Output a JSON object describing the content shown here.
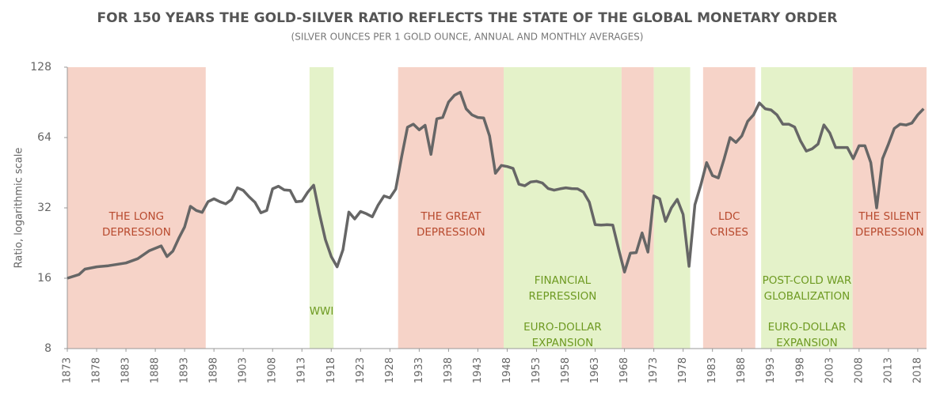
{
  "chart_data": {
    "type": "line",
    "title": "FOR 150 YEARS THE GOLD-SILVER RATIO REFLECTS THE STATE OF THE GLOBAL MONETARY ORDER",
    "subtitle": "(SILVER OUNCES PER 1 GOLD OUNCE, ANNUAL AND MONTHLY AVERAGES)",
    "y_label": "Ratio, logarithmic scale",
    "log_scale": true,
    "ylim": [
      8,
      128
    ],
    "yticks": [
      8,
      16,
      32,
      64,
      128
    ],
    "xlim": [
      1873,
      2019.5
    ],
    "xticks": [
      1873,
      1878,
      1883,
      1888,
      1893,
      1898,
      1903,
      1908,
      1913,
      1918,
      1923,
      1928,
      1933,
      1938,
      1943,
      1948,
      1953,
      1958,
      1963,
      1968,
      1973,
      1978,
      1983,
      1988,
      1993,
      1998,
      2003,
      2008,
      2013,
      2018
    ],
    "x": [
      1873,
      1875,
      1876,
      1878,
      1880,
      1883,
      1885,
      1887,
      1889,
      1890,
      1891,
      1892,
      1893,
      1894,
      1895,
      1896,
      1897,
      1898,
      1899,
      1900,
      1901,
      1902,
      1903,
      1904,
      1905,
      1906,
      1907,
      1908,
      1909,
      1910,
      1911,
      1912,
      1913,
      1914,
      1915,
      1916,
      1917,
      1918,
      1919,
      1920,
      1921,
      1922,
      1923,
      1924,
      1925,
      1926,
      1927,
      1928,
      1929,
      1930,
      1931,
      1932,
      1933,
      1934,
      1935,
      1936,
      1937,
      1938,
      1939,
      1940,
      1941,
      1942,
      1943,
      1944,
      1945,
      1946,
      1947,
      1948,
      1949,
      1950,
      1951,
      1952,
      1953,
      1954,
      1955,
      1956,
      1957,
      1958,
      1959,
      1960,
      1961,
      1962,
      1963,
      1964,
      1965,
      1966,
      1967,
      1968,
      1969,
      1970,
      1971,
      1972,
      1973,
      1974,
      1975,
      1976,
      1977,
      1978,
      1979,
      1980,
      1981,
      1982,
      1983,
      1984,
      1985,
      1986,
      1987,
      1988,
      1989,
      1990,
      1991,
      1992,
      1993,
      1994,
      1995,
      1996,
      1997,
      1998,
      1999,
      2000,
      2001,
      2002,
      2003,
      2004,
      2005,
      2006,
      2007,
      2008,
      2009,
      2010,
      2011,
      2012,
      2013,
      2014,
      2015,
      2016,
      2017,
      2018,
      2019
    ],
    "series": [
      {
        "name": "Gold-silver ratio",
        "color": "#666666",
        "values": [
          16,
          16.6,
          17.5,
          17.9,
          18.1,
          18.6,
          19.4,
          21,
          22,
          19.8,
          20.9,
          23.7,
          26.5,
          32.5,
          31.2,
          30.6,
          34,
          35,
          34,
          33.3,
          34.7,
          39,
          38,
          35.7,
          33.8,
          30.5,
          31.2,
          38.6,
          39.6,
          38.2,
          38,
          34,
          34.2,
          37.4,
          40,
          30.1,
          23.4,
          19.8,
          17.9,
          21.2,
          30.7,
          28.7,
          30.9,
          30.2,
          29.3,
          32.9,
          36,
          35.3,
          38.5,
          53,
          70.9,
          73,
          69,
          72.2,
          54.2,
          77,
          78,
          90.8,
          97,
          100,
          85,
          80,
          78,
          77.6,
          65,
          45,
          48.6,
          48.1,
          47.2,
          40.4,
          39.8,
          41.3,
          41.6,
          40.9,
          38.7,
          38.1,
          38.6,
          39,
          38.7,
          38.6,
          37.4,
          33.9,
          27.1,
          27,
          27.1,
          27,
          21.3,
          17,
          20.5,
          20.6,
          25,
          20.7,
          36,
          35,
          28,
          32,
          34.8,
          30,
          18,
          33,
          40,
          50,
          44,
          43,
          52,
          64,
          61,
          65,
          75,
          80,
          90,
          85,
          84,
          80,
          73,
          73,
          71,
          62,
          56,
          57.3,
          60,
          72.5,
          67,
          58,
          58,
          58,
          52,
          59,
          59,
          50,
          32,
          52,
          60,
          70,
          73,
          72.4,
          73.8,
          80,
          85
        ]
      }
    ],
    "regions": [
      {
        "start": 1873,
        "end": 1896.6,
        "color": "#f6d3c8",
        "label_color": "#b84a2e",
        "labels": [
          [
            "THE LONG",
            "DEPRESSION"
          ]
        ]
      },
      {
        "start": 1914.3,
        "end": 1918.4,
        "color": "#e4f2c9",
        "label_color": "#6e9a22",
        "labels": [
          [
            "WWI"
          ]
        ]
      },
      {
        "start": 1929.4,
        "end": 1947.4,
        "color": "#f6d3c8",
        "label_color": "#b84a2e",
        "labels": [
          [
            "THE GREAT",
            "DEPRESSION"
          ]
        ]
      },
      {
        "start": 1947.4,
        "end": 1967.5,
        "color": "#e4f2c9",
        "label_color": "#6e9a22",
        "labels": [
          [
            "FINANCIAL",
            "REPRESSION"
          ],
          [
            "EURO-DOLLAR",
            "EXPANSION"
          ]
        ]
      },
      {
        "start": 1967.5,
        "end": 1973,
        "color": "#f6d3c8"
      },
      {
        "start": 1973,
        "end": 1979.2,
        "color": "#e4f2c9"
      },
      {
        "start": 1981.4,
        "end": 1990.3,
        "color": "#f6d3c8",
        "label_color": "#b84a2e",
        "labels": [
          [
            "LDC",
            "CRISES"
          ]
        ]
      },
      {
        "start": 1991.3,
        "end": 2006.9,
        "color": "#e4f2c9",
        "label_color": "#6e9a22",
        "labels": [
          [
            "POST-COLD WAR",
            "GLOBALIZATION"
          ],
          [
            "EURO-DOLLAR",
            "EXPANSION"
          ]
        ]
      },
      {
        "start": 2006.9,
        "end": 2019.5,
        "color": "#f6d3c8",
        "label_color": "#b84a2e",
        "labels": [
          [
            "THE SILENT",
            "DEPRESSION"
          ]
        ]
      }
    ]
  }
}
